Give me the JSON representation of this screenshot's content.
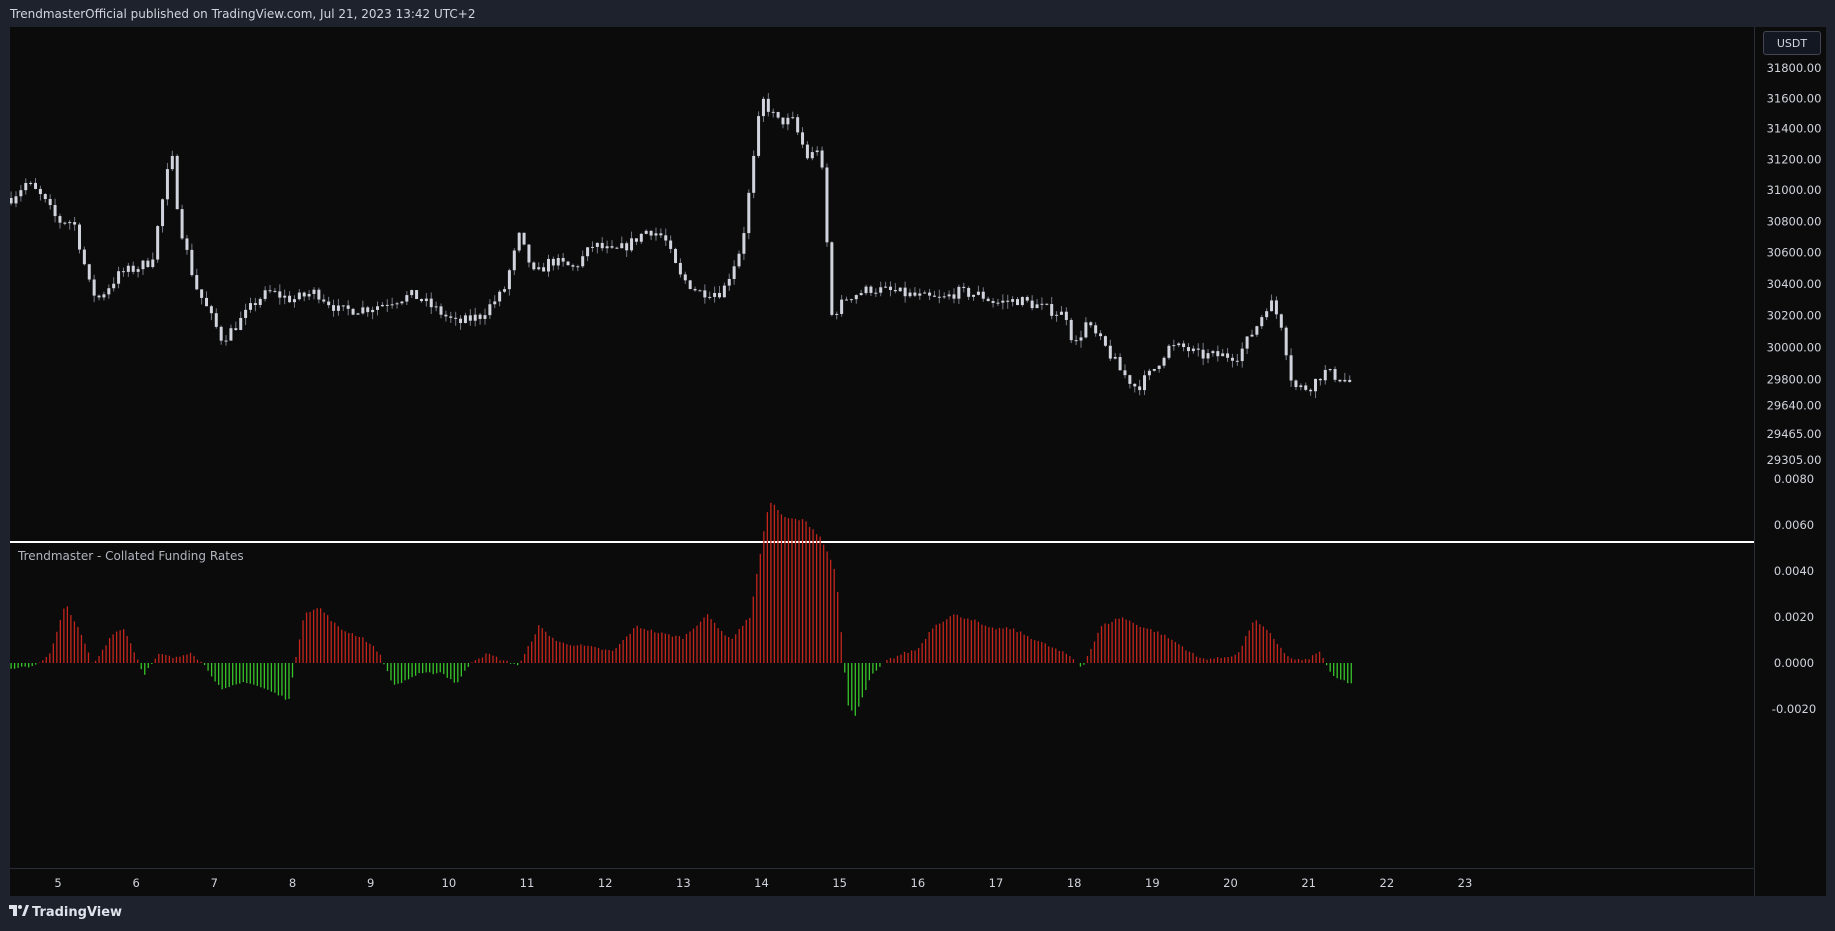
{
  "header": {
    "publish_text": "TrendmasterOfficial published on TradingView.com, Jul 21, 2023 13:42 UTC+2"
  },
  "toolbar": {
    "currency_label": "USDT"
  },
  "indicator": {
    "title": "Trendmaster - Collated Funding Rates"
  },
  "footer": {
    "brand": "TradingView"
  },
  "colors": {
    "background": "#0b0b0c",
    "panel": "#1e222d",
    "candle": "#d1d4dc",
    "wick": "#787b86",
    "positive_histogram": "#c4261d",
    "negative_histogram": "#37c529",
    "separator": "#ffffff"
  },
  "chart_data": [
    {
      "type": "candlestick",
      "title": "",
      "quote_currency": "USDT",
      "x_axis": "date (July 2023)",
      "y_ticks": [
        "31800.00",
        "31600.00",
        "31400.00",
        "31200.00",
        "31000.00",
        "30800.00",
        "30600.00",
        "30400.00",
        "30200.00",
        "30000.00",
        "29800.00",
        "29640.00",
        "29465.00",
        "29305.00"
      ],
      "y_scale": "log",
      "ylim": [
        29305,
        31900
      ],
      "points": [
        {
          "x": 4.4,
          "y": 30950
        },
        {
          "x": 4.6,
          "y": 31050
        },
        {
          "x": 4.8,
          "y": 30950
        },
        {
          "x": 5.0,
          "y": 30800
        },
        {
          "x": 5.2,
          "y": 30800
        },
        {
          "x": 5.4,
          "y": 30400
        },
        {
          "x": 5.5,
          "y": 30300
        },
        {
          "x": 5.8,
          "y": 30470
        },
        {
          "x": 6.0,
          "y": 30500
        },
        {
          "x": 6.2,
          "y": 30550
        },
        {
          "x": 6.45,
          "y": 31250
        },
        {
          "x": 6.55,
          "y": 30800
        },
        {
          "x": 6.75,
          "y": 30400
        },
        {
          "x": 6.95,
          "y": 30200
        },
        {
          "x": 7.1,
          "y": 30050
        },
        {
          "x": 7.3,
          "y": 30150
        },
        {
          "x": 7.55,
          "y": 30300
        },
        {
          "x": 7.7,
          "y": 30350
        },
        {
          "x": 8.0,
          "y": 30300
        },
        {
          "x": 8.3,
          "y": 30350
        },
        {
          "x": 8.6,
          "y": 30230
        },
        {
          "x": 9.0,
          "y": 30250
        },
        {
          "x": 9.3,
          "y": 30300
        },
        {
          "x": 9.55,
          "y": 30330
        },
        {
          "x": 9.8,
          "y": 30250
        },
        {
          "x": 10.1,
          "y": 30150
        },
        {
          "x": 10.4,
          "y": 30200
        },
        {
          "x": 10.7,
          "y": 30350
        },
        {
          "x": 10.9,
          "y": 30700
        },
        {
          "x": 11.1,
          "y": 30450
        },
        {
          "x": 11.3,
          "y": 30550
        },
        {
          "x": 11.6,
          "y": 30500
        },
        {
          "x": 11.85,
          "y": 30650
        },
        {
          "x": 12.1,
          "y": 30600
        },
        {
          "x": 12.3,
          "y": 30650
        },
        {
          "x": 12.55,
          "y": 30750
        },
        {
          "x": 12.75,
          "y": 30700
        },
        {
          "x": 12.95,
          "y": 30450
        },
        {
          "x": 13.2,
          "y": 30350
        },
        {
          "x": 13.5,
          "y": 30350
        },
        {
          "x": 13.75,
          "y": 30650
        },
        {
          "x": 13.9,
          "y": 31200
        },
        {
          "x": 14.0,
          "y": 31600
        },
        {
          "x": 14.2,
          "y": 31450
        },
        {
          "x": 14.4,
          "y": 31450
        },
        {
          "x": 14.6,
          "y": 31200
        },
        {
          "x": 14.75,
          "y": 31300
        },
        {
          "x": 14.9,
          "y": 30200
        },
        {
          "x": 15.1,
          "y": 30320
        },
        {
          "x": 15.4,
          "y": 30370
        },
        {
          "x": 15.7,
          "y": 30350
        },
        {
          "x": 16.0,
          "y": 30320
        },
        {
          "x": 16.3,
          "y": 30300
        },
        {
          "x": 16.5,
          "y": 30350
        },
        {
          "x": 16.8,
          "y": 30330
        },
        {
          "x": 17.0,
          "y": 30280
        },
        {
          "x": 17.3,
          "y": 30300
        },
        {
          "x": 17.6,
          "y": 30250
        },
        {
          "x": 17.9,
          "y": 30200
        },
        {
          "x": 18.0,
          "y": 30000
        },
        {
          "x": 18.15,
          "y": 30150
        },
        {
          "x": 18.4,
          "y": 30000
        },
        {
          "x": 18.6,
          "y": 29850
        },
        {
          "x": 18.8,
          "y": 29750
        },
        {
          "x": 19.0,
          "y": 29850
        },
        {
          "x": 19.2,
          "y": 30000
        },
        {
          "x": 19.4,
          "y": 30000
        },
        {
          "x": 19.6,
          "y": 29950
        },
        {
          "x": 19.8,
          "y": 29950
        },
        {
          "x": 20.1,
          "y": 29950
        },
        {
          "x": 20.35,
          "y": 30150
        },
        {
          "x": 20.5,
          "y": 30300
        },
        {
          "x": 20.65,
          "y": 30150
        },
        {
          "x": 20.8,
          "y": 29750
        },
        {
          "x": 21.0,
          "y": 29750
        },
        {
          "x": 21.2,
          "y": 29850
        },
        {
          "x": 21.45,
          "y": 29800
        },
        {
          "x": 21.55,
          "y": 29780
        }
      ]
    },
    {
      "type": "bar",
      "title": "Trendmaster - Collated Funding Rates",
      "x_ticks": [
        "5",
        "6",
        "7",
        "8",
        "9",
        "10",
        "11",
        "12",
        "13",
        "14",
        "15",
        "16",
        "17",
        "18",
        "19",
        "20",
        "21",
        "22",
        "23"
      ],
      "y_ticks": [
        "0.0080",
        "0.0060",
        "0.0040",
        "0.0020",
        "0.0000",
        "-0.0020"
      ],
      "ylim": [
        -0.0032,
        0.0083
      ],
      "points": [
        {
          "x": 4.4,
          "y": -0.0003
        },
        {
          "x": 4.7,
          "y": -0.0001
        },
        {
          "x": 4.9,
          "y": 0.0004
        },
        {
          "x": 5.1,
          "y": 0.0026
        },
        {
          "x": 5.3,
          "y": 0.0012
        },
        {
          "x": 5.45,
          "y": -0.0001
        },
        {
          "x": 5.7,
          "y": 0.0013
        },
        {
          "x": 5.85,
          "y": 0.0015
        },
        {
          "x": 6.1,
          "y": -0.0005
        },
        {
          "x": 6.3,
          "y": 0.0004
        },
        {
          "x": 6.5,
          "y": 0.0002
        },
        {
          "x": 6.7,
          "y": 0.0005
        },
        {
          "x": 6.9,
          "y": -0.0002
        },
        {
          "x": 7.1,
          "y": -0.0012
        },
        {
          "x": 7.4,
          "y": -0.0008
        },
        {
          "x": 7.7,
          "y": -0.0012
        },
        {
          "x": 7.95,
          "y": -0.0016
        },
        {
          "x": 8.15,
          "y": 0.0022
        },
        {
          "x": 8.35,
          "y": 0.0024
        },
        {
          "x": 8.6,
          "y": 0.0015
        },
        {
          "x": 8.9,
          "y": 0.0011
        },
        {
          "x": 9.1,
          "y": 0.0005
        },
        {
          "x": 9.3,
          "y": -0.001
        },
        {
          "x": 9.6,
          "y": -0.0005
        },
        {
          "x": 9.9,
          "y": -0.0004
        },
        {
          "x": 10.1,
          "y": -0.0009
        },
        {
          "x": 10.3,
          "y": 0.0001
        },
        {
          "x": 10.5,
          "y": 0.0004
        },
        {
          "x": 10.7,
          "y": 0.0001
        },
        {
          "x": 10.9,
          "y": -0.0001
        },
        {
          "x": 11.15,
          "y": 0.0016
        },
        {
          "x": 11.4,
          "y": 0.0009
        },
        {
          "x": 11.8,
          "y": 0.0007
        },
        {
          "x": 12.1,
          "y": 0.0005
        },
        {
          "x": 12.4,
          "y": 0.0016
        },
        {
          "x": 12.7,
          "y": 0.0013
        },
        {
          "x": 13.0,
          "y": 0.0011
        },
        {
          "x": 13.3,
          "y": 0.0021
        },
        {
          "x": 13.6,
          "y": 0.001
        },
        {
          "x": 13.85,
          "y": 0.002
        },
        {
          "x": 14.1,
          "y": 0.0071
        },
        {
          "x": 14.3,
          "y": 0.0063
        },
        {
          "x": 14.55,
          "y": 0.0062
        },
        {
          "x": 14.75,
          "y": 0.0055
        },
        {
          "x": 14.95,
          "y": 0.004
        },
        {
          "x": 15.1,
          "y": -0.0018
        },
        {
          "x": 15.2,
          "y": -0.0023
        },
        {
          "x": 15.4,
          "y": -0.0006
        },
        {
          "x": 15.6,
          "y": 0.0001
        },
        {
          "x": 15.8,
          "y": 0.0004
        },
        {
          "x": 16.0,
          "y": 0.0006
        },
        {
          "x": 16.2,
          "y": 0.0016
        },
        {
          "x": 16.45,
          "y": 0.0021
        },
        {
          "x": 16.7,
          "y": 0.0019
        },
        {
          "x": 16.9,
          "y": 0.0015
        },
        {
          "x": 17.2,
          "y": 0.0015
        },
        {
          "x": 17.45,
          "y": 0.0011
        },
        {
          "x": 17.7,
          "y": 0.0007
        },
        {
          "x": 17.95,
          "y": 0.0003
        },
        {
          "x": 18.1,
          "y": -0.0002
        },
        {
          "x": 18.35,
          "y": 0.0016
        },
        {
          "x": 18.6,
          "y": 0.002
        },
        {
          "x": 18.85,
          "y": 0.0016
        },
        {
          "x": 19.1,
          "y": 0.0013
        },
        {
          "x": 19.35,
          "y": 0.0008
        },
        {
          "x": 19.6,
          "y": 0.0002
        },
        {
          "x": 19.85,
          "y": 0.0002
        },
        {
          "x": 20.1,
          "y": 0.0004
        },
        {
          "x": 20.3,
          "y": 0.0019
        },
        {
          "x": 20.5,
          "y": 0.0013
        },
        {
          "x": 20.75,
          "y": 0.0002
        },
        {
          "x": 20.95,
          "y": 0.0001
        },
        {
          "x": 21.15,
          "y": 0.0005
        },
        {
          "x": 21.3,
          "y": -0.0006
        },
        {
          "x": 21.55,
          "y": -0.0009
        }
      ]
    }
  ]
}
